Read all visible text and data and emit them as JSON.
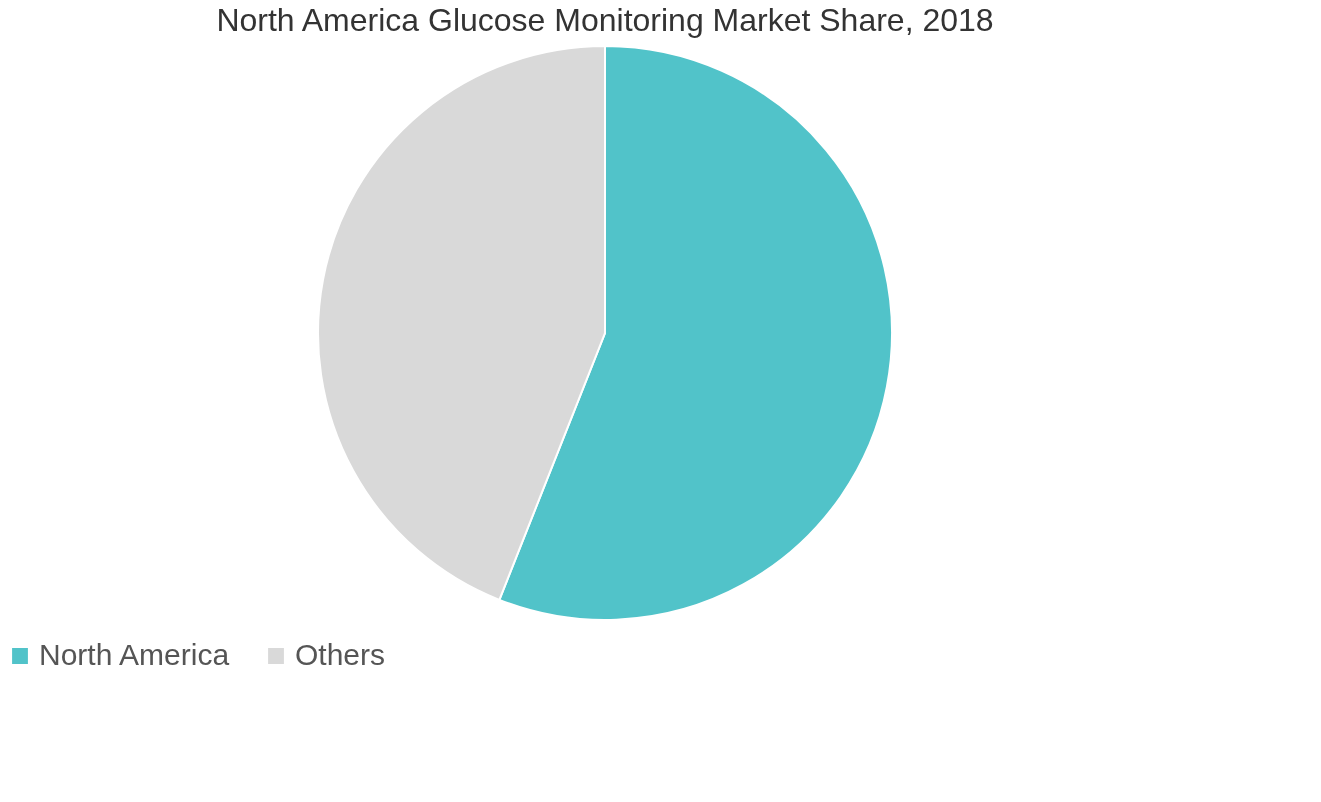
{
  "chart_data": {
    "type": "pie",
    "title": "North America Glucose Monitoring Market Share, 2018",
    "categories": [
      "North America",
      "Others"
    ],
    "values": [
      56,
      44
    ],
    "colors": [
      "#51c3c9",
      "#d9d9d9"
    ],
    "legend": "bottom"
  }
}
